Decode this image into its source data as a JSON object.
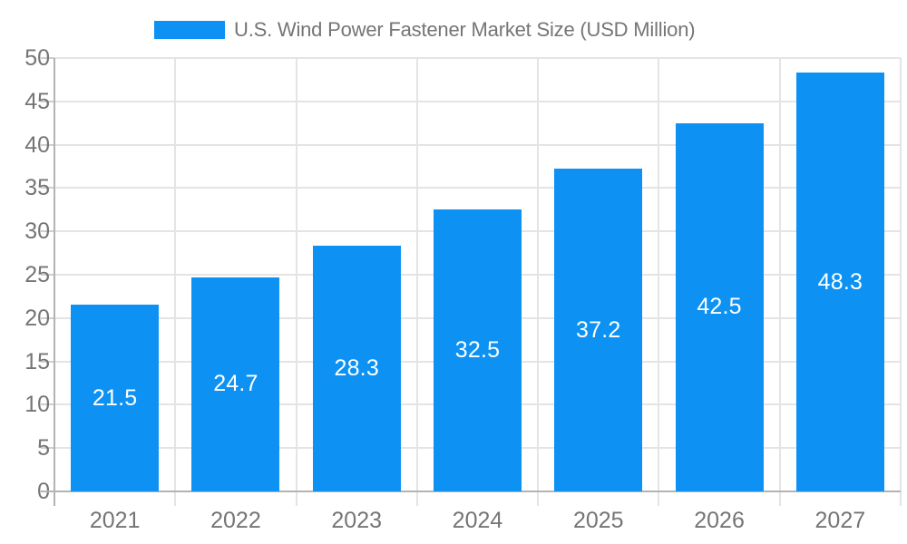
{
  "legend": {
    "title": "U.S. Wind Power Fastener Market Size (USD Million)"
  },
  "chart_data": {
    "type": "bar",
    "title": "U.S. Wind Power Fastener Market Size (USD Million)",
    "xlabel": "",
    "ylabel": "",
    "categories": [
      "2021",
      "2022",
      "2023",
      "2024",
      "2025",
      "2026",
      "2027"
    ],
    "values": [
      21.5,
      24.7,
      28.3,
      32.5,
      37.2,
      42.5,
      48.3
    ],
    "value_labels": [
      "21.5",
      "24.7",
      "28.3",
      "32.5",
      "37.2",
      "42.5",
      "48.3"
    ],
    "ylim": [
      0,
      50
    ],
    "y_ticks": [
      0,
      5,
      10,
      15,
      20,
      25,
      30,
      35,
      40,
      45,
      50
    ],
    "y_tick_labels": [
      "0",
      "5",
      "10",
      "15",
      "20",
      "25",
      "30",
      "35",
      "40",
      "45",
      "50"
    ],
    "grid": "on",
    "legend_position": "top",
    "annotations": "values centered inside bars, white",
    "colors": {
      "bar": "#0D92F4",
      "grid": "#E4E4E4",
      "axis": "#B3B3B3",
      "tick": "#CFCFCF",
      "label": "#757575",
      "annotation": "#FFFFFF",
      "background": "#FFFFFF"
    }
  }
}
